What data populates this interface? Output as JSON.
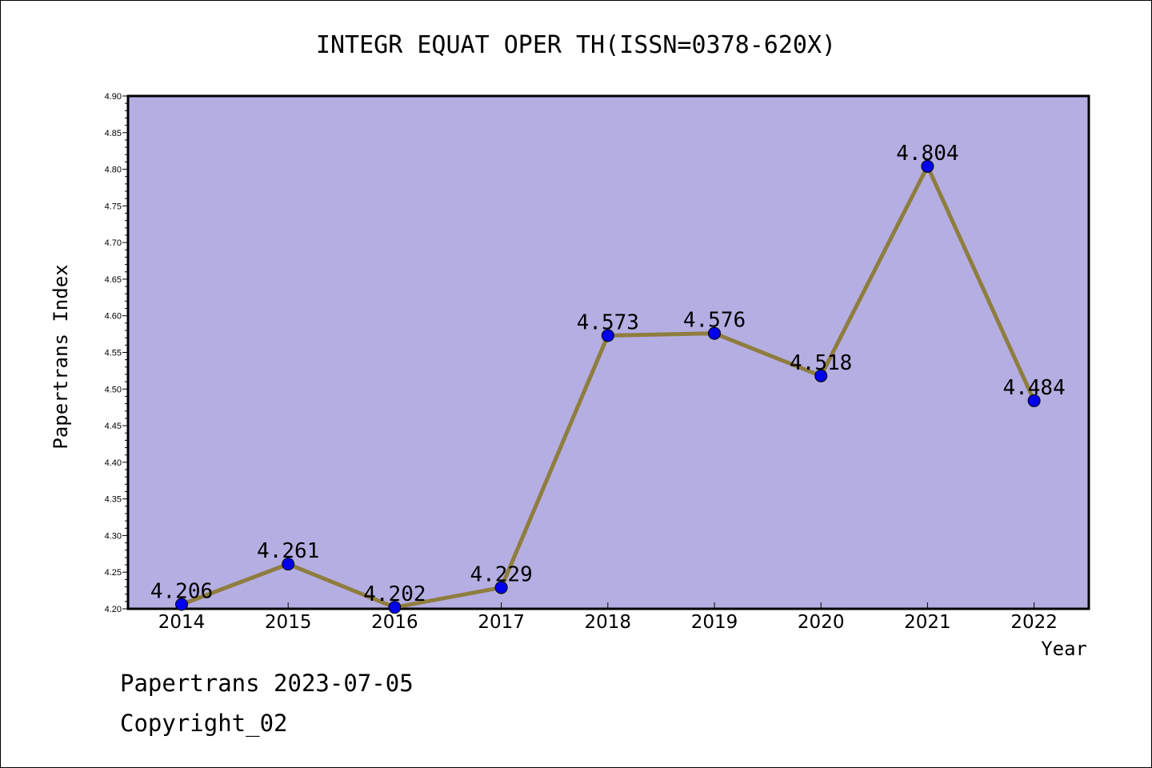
{
  "chart_data": {
    "type": "line",
    "title": "INTEGR EQUAT OPER TH(ISSN=0378-620X)",
    "xlabel": "Year",
    "ylabel": "Papertrans Index",
    "categories": [
      "2014",
      "2015",
      "2016",
      "2017",
      "2018",
      "2019",
      "2020",
      "2021",
      "2022"
    ],
    "values": [
      4.206,
      4.261,
      4.202,
      4.229,
      4.573,
      4.576,
      4.518,
      4.804,
      4.484
    ],
    "data_labels": [
      "4.206",
      "4.261",
      "4.202",
      "4.229",
      "4.573",
      "4.576",
      "4.518",
      "4.804",
      "4.484"
    ],
    "ylim": [
      4.2,
      4.9
    ],
    "yticks": [
      "4.20",
      "4.25",
      "4.30",
      "4.35",
      "4.40",
      "4.45",
      "4.50",
      "4.55",
      "4.60",
      "4.65",
      "4.70",
      "4.75",
      "4.80",
      "4.85",
      "4.90"
    ],
    "grid": false,
    "legend": "none",
    "colors": {
      "plot_bg": "#b5aee2",
      "line": "#8e7d3e",
      "marker": "#0000ee"
    }
  },
  "footer": {
    "line1": "Papertrans 2023-07-05",
    "line2": "Copyright_02"
  }
}
